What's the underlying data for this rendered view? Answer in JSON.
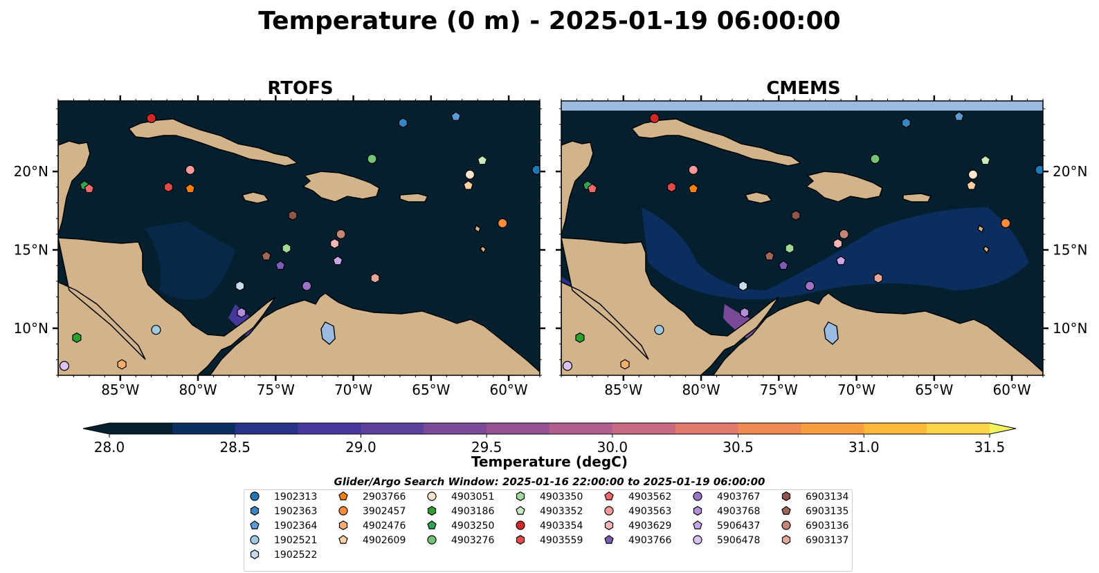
{
  "chart_data": {
    "type": "heatmap",
    "title": "Temperature (0 m) - 2025-01-19 06:00:00",
    "panels": [
      {
        "title": "RTOFS",
        "tick_side": "left"
      },
      {
        "title": "CMEMS",
        "tick_side": "right"
      }
    ],
    "xlim": [
      -89,
      -58
    ],
    "ylim": [
      7,
      24.5
    ],
    "x_ticks": [
      {
        "value": -85,
        "label": "85°W"
      },
      {
        "value": -80,
        "label": "80°W"
      },
      {
        "value": -75,
        "label": "75°W"
      },
      {
        "value": -70,
        "label": "70°W"
      },
      {
        "value": -65,
        "label": "65°W"
      },
      {
        "value": -60,
        "label": "60°W"
      }
    ],
    "y_ticks": [
      {
        "value": 10,
        "label": "10°N"
      },
      {
        "value": 15,
        "label": "15°N"
      },
      {
        "value": 20,
        "label": "20°N"
      }
    ],
    "colorbar": {
      "label": "Temperature (degC)",
      "min": 28.0,
      "max": 31.5,
      "step": 0.25,
      "extend": "both",
      "ticks": [
        {
          "value": 28.0,
          "label": "28.0"
        },
        {
          "value": 28.5,
          "label": "28.5"
        },
        {
          "value": 29.0,
          "label": "29.0"
        },
        {
          "value": 29.5,
          "label": "29.5"
        },
        {
          "value": 30.0,
          "label": "30.0"
        },
        {
          "value": 30.5,
          "label": "30.5"
        },
        {
          "value": 31.0,
          "label": "31.0"
        },
        {
          "value": 31.5,
          "label": "31.5"
        }
      ],
      "colors": [
        "#04202f",
        "#0c2e5e",
        "#2a338a",
        "#46389a",
        "#5e3f9b",
        "#7a4a99",
        "#955394",
        "#b05e8e",
        "#c96a84",
        "#e07a6d",
        "#f08a55",
        "#f89d40",
        "#fcb83c",
        "#fad54a",
        "#f0f25e"
      ]
    },
    "legend_title": "Glider/Argo Search Window: 2025-01-16 22:00:00 to 2025-01-19 06:00:00",
    "series": [
      {
        "name": "1902313",
        "marker": "circle",
        "color": "#1f77b4",
        "lon": -58.2,
        "lat": 20.1
      },
      {
        "name": "1902363",
        "marker": "hexagon",
        "color": "#3a86c4",
        "lon": -66.8,
        "lat": 23.1
      },
      {
        "name": "1902364",
        "marker": "pentagon",
        "color": "#5b9bd5",
        "lon": -63.4,
        "lat": 23.5
      },
      {
        "name": "1902521",
        "marker": "circle",
        "color": "#9ecae1",
        "lon": -82.7,
        "lat": 9.9
      },
      {
        "name": "1902522",
        "marker": "hexagon",
        "color": "#c6dbef",
        "lon": -77.3,
        "lat": 12.7
      },
      {
        "name": "2903766",
        "marker": "pentagon",
        "color": "#ff7f0e",
        "lon": -80.5,
        "lat": 18.9
      },
      {
        "name": "3902457",
        "marker": "circle",
        "color": "#fd8d3c",
        "lon": -60.4,
        "lat": 16.7
      },
      {
        "name": "4902476",
        "marker": "hexagon",
        "color": "#fdae6b",
        "lon": -84.9,
        "lat": 7.7
      },
      {
        "name": "4902609",
        "marker": "pentagon",
        "color": "#fdd0a2",
        "lon": -62.6,
        "lat": 19.1
      },
      {
        "name": "4903051",
        "marker": "circle",
        "color": "#fee6ce",
        "lon": -62.5,
        "lat": 19.8
      },
      {
        "name": "4903186",
        "marker": "hexagon",
        "color": "#2ca02c",
        "lon": -87.8,
        "lat": 9.4
      },
      {
        "name": "4903250",
        "marker": "pentagon",
        "color": "#31a354",
        "lon": -87.3,
        "lat": 19.1
      },
      {
        "name": "4903276",
        "marker": "circle",
        "color": "#74c476",
        "lon": -68.8,
        "lat": 20.8
      },
      {
        "name": "4903350",
        "marker": "hexagon",
        "color": "#a1d99b",
        "lon": -74.3,
        "lat": 15.1
      },
      {
        "name": "4903352",
        "marker": "pentagon",
        "color": "#c7e9c0",
        "lon": -61.7,
        "lat": 20.7
      },
      {
        "name": "4903354",
        "marker": "circle",
        "color": "#d62728",
        "lon": -83.0,
        "lat": 23.4
      },
      {
        "name": "4903559",
        "marker": "hexagon",
        "color": "#e34a4a",
        "lon": -81.9,
        "lat": 19.0
      },
      {
        "name": "4903562",
        "marker": "pentagon",
        "color": "#ef6a6a",
        "lon": -87.0,
        "lat": 18.9
      },
      {
        "name": "4903563",
        "marker": "circle",
        "color": "#f49a9a",
        "lon": -80.5,
        "lat": 20.1
      },
      {
        "name": "4903629",
        "marker": "hexagon",
        "color": "#f7b6b6",
        "lon": -71.2,
        "lat": 15.4
      },
      {
        "name": "4903766",
        "marker": "pentagon",
        "color": "#7b5bb5",
        "lon": -74.7,
        "lat": 14.0
      },
      {
        "name": "4903767",
        "marker": "circle",
        "color": "#9e72c8",
        "lon": -73.0,
        "lat": 12.7
      },
      {
        "name": "4903768",
        "marker": "hexagon",
        "color": "#b48fd9",
        "lon": -77.2,
        "lat": 11.0
      },
      {
        "name": "5906437",
        "marker": "pentagon",
        "color": "#c7a6ea",
        "lon": -71.0,
        "lat": 14.3
      },
      {
        "name": "5906478",
        "marker": "circle",
        "color": "#dcc3f4",
        "lon": -88.6,
        "lat": 7.6
      },
      {
        "name": "6903134",
        "marker": "hexagon",
        "color": "#8c564b",
        "lon": -73.9,
        "lat": 17.2
      },
      {
        "name": "6903135",
        "marker": "pentagon",
        "color": "#a0665a",
        "lon": -75.6,
        "lat": 14.6
      },
      {
        "name": "6903136",
        "marker": "circle",
        "color": "#c4857a",
        "lon": -70.8,
        "lat": 16.0
      },
      {
        "name": "6903137",
        "marker": "hexagon",
        "color": "#e2a69b",
        "lon": -68.6,
        "lat": 13.2
      }
    ]
  }
}
